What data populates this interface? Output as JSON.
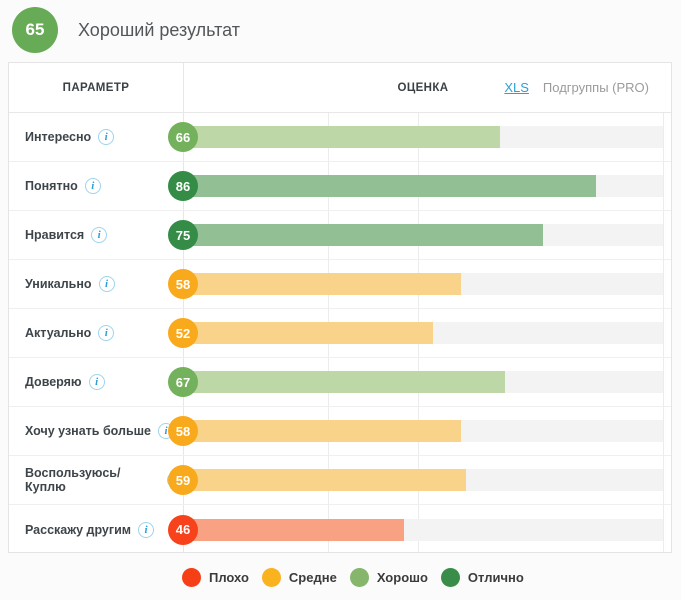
{
  "summary": {
    "score": "65",
    "label": "Хороший результат",
    "badge_color": "#68ab57"
  },
  "table": {
    "header": {
      "parameter": "ПАРАМЕТР",
      "score": "ОЦЕНКА",
      "xls": "XLS",
      "subgroups": "Подгруппы (PRO)"
    },
    "rows": [
      {
        "label": "Интересно",
        "value": 66,
        "level": "good"
      },
      {
        "label": "Понятно",
        "value": 86,
        "level": "excellent"
      },
      {
        "label": "Нравится",
        "value": 75,
        "level": "excellent"
      },
      {
        "label": "Уникально",
        "value": 58,
        "level": "average"
      },
      {
        "label": "Актуально",
        "value": 52,
        "level": "average"
      },
      {
        "label": "Доверяю",
        "value": 67,
        "level": "good"
      },
      {
        "label": "Хочу узнать больше",
        "value": 58,
        "level": "average"
      },
      {
        "label": "Воспользуюсь/Куплю",
        "value": 59,
        "level": "average"
      },
      {
        "label": "Расскажу другим",
        "value": 46,
        "level": "bad"
      }
    ],
    "info_icon_glyph": "i"
  },
  "levels": {
    "bad": {
      "circle": "#f8421c",
      "bar": "#f9a183"
    },
    "average": {
      "circle": "#f9a91c",
      "bar": "#f8d389"
    },
    "good": {
      "circle": "#74b15c",
      "bar": "#bed7a7"
    },
    "excellent": {
      "circle": "#358c46",
      "bar": "#93bf94"
    }
  },
  "legend": [
    {
      "label": "Плохо",
      "color": "#f63f17"
    },
    {
      "label": "Средне",
      "color": "#fab21e"
    },
    {
      "label": "Хорошо",
      "color": "#85b66b"
    },
    {
      "label": "Отлично",
      "color": "#3a8d48"
    }
  ],
  "chart_data": {
    "type": "bar",
    "orientation": "horizontal",
    "title": "Хороший результат",
    "overall_score": 65,
    "categories": [
      "Интересно",
      "Понятно",
      "Нравится",
      "Уникально",
      "Актуально",
      "Доверяю",
      "Хочу узнать больше",
      "Воспользуюсь/Куплю",
      "Расскажу другим"
    ],
    "values": [
      66,
      86,
      75,
      58,
      52,
      67,
      58,
      59,
      46
    ],
    "value_axis_range": [
      0,
      100
    ],
    "grid": true,
    "legend_entries": [
      "Плохо",
      "Средне",
      "Хорошо",
      "Отлично"
    ],
    "legend_position": "bottom",
    "series_coloring": "by-threshold"
  }
}
